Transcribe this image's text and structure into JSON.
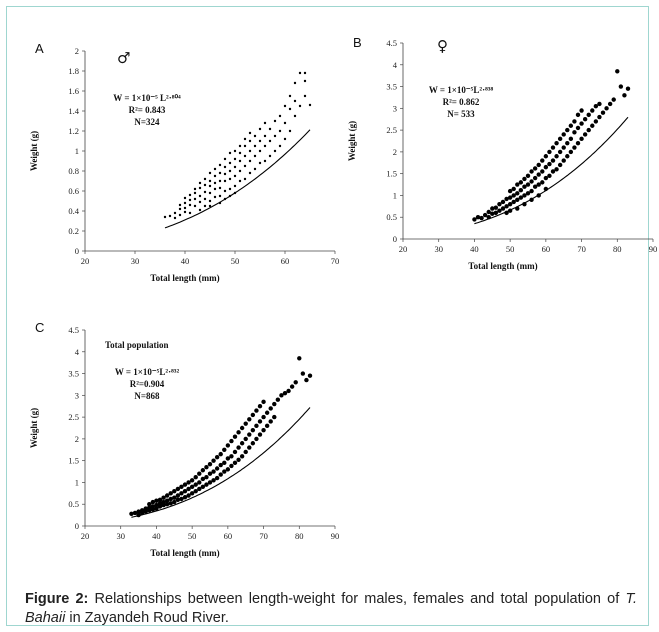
{
  "caption": {
    "label": "Figure 2:",
    "text_before": " Relationships between length-weight for males, females and total population of ",
    "species": "T. Bahaii",
    "text_after": " in Zayandeh Roud River."
  },
  "chart_data": [
    {
      "panel": "A",
      "type": "scatter",
      "symbol": "♂",
      "title": "",
      "xlabel": "Total length (mm)",
      "ylabel": "Weight (g)",
      "xlim": [
        20,
        70
      ],
      "ylim": [
        0,
        2
      ],
      "xticks": [
        "20",
        "30",
        "40",
        "50",
        "60",
        "70"
      ],
      "yticks": [
        "0",
        "0.2",
        "0.4",
        "0.6",
        "0.8",
        "1",
        "1.2",
        "1.4",
        "1.6",
        "1.8",
        "2"
      ],
      "equation": {
        "line1": "W = 1×10⁻⁵ L²·⁸⁰⁴",
        "line2": "R²= 0.843",
        "line3": "N=324"
      },
      "fit": {
        "a": 1e-05,
        "b": 2.804,
        "x_range": [
          36,
          65
        ]
      },
      "points": [
        [
          36,
          0.34
        ],
        [
          37,
          0.35
        ],
        [
          38,
          0.33
        ],
        [
          38,
          0.38
        ],
        [
          39,
          0.42
        ],
        [
          39,
          0.46
        ],
        [
          39,
          0.36
        ],
        [
          40,
          0.43
        ],
        [
          40,
          0.48
        ],
        [
          40,
          0.53
        ],
        [
          40,
          0.39
        ],
        [
          41,
          0.46
        ],
        [
          41,
          0.51
        ],
        [
          41,
          0.56
        ],
        [
          41,
          0.38
        ],
        [
          42,
          0.45
        ],
        [
          42,
          0.52
        ],
        [
          42,
          0.58
        ],
        [
          42,
          0.62
        ],
        [
          43,
          0.41
        ],
        [
          43,
          0.49
        ],
        [
          43,
          0.55
        ],
        [
          43,
          0.63
        ],
        [
          43,
          0.68
        ],
        [
          44,
          0.45
        ],
        [
          44,
          0.52
        ],
        [
          44,
          0.59
        ],
        [
          44,
          0.66
        ],
        [
          44,
          0.72
        ],
        [
          45,
          0.5
        ],
        [
          45,
          0.58
        ],
        [
          45,
          0.65
        ],
        [
          45,
          0.7
        ],
        [
          45,
          0.78
        ],
        [
          45,
          0.45
        ],
        [
          46,
          0.54
        ],
        [
          46,
          0.62
        ],
        [
          46,
          0.68
        ],
        [
          46,
          0.75
        ],
        [
          46,
          0.82
        ],
        [
          47,
          0.55
        ],
        [
          47,
          0.63
        ],
        [
          47,
          0.7
        ],
        [
          47,
          0.78
        ],
        [
          47,
          0.86
        ],
        [
          47,
          0.48
        ],
        [
          48,
          0.6
        ],
        [
          48,
          0.7
        ],
        [
          48,
          0.77
        ],
        [
          48,
          0.84
        ],
        [
          48,
          0.92
        ],
        [
          48,
          0.52
        ],
        [
          49,
          0.62
        ],
        [
          49,
          0.72
        ],
        [
          49,
          0.8
        ],
        [
          49,
          0.88
        ],
        [
          49,
          0.98
        ],
        [
          49,
          0.55
        ],
        [
          50,
          0.65
        ],
        [
          50,
          0.75
        ],
        [
          50,
          0.84
        ],
        [
          50,
          0.92
        ],
        [
          50,
          1.0
        ],
        [
          50,
          0.58
        ],
        [
          51,
          0.7
        ],
        [
          51,
          0.8
        ],
        [
          51,
          0.9
        ],
        [
          51,
          0.98
        ],
        [
          51,
          1.05
        ],
        [
          52,
          0.72
        ],
        [
          52,
          0.85
        ],
        [
          52,
          0.95
        ],
        [
          52,
          1.05
        ],
        [
          52,
          1.12
        ],
        [
          53,
          0.78
        ],
        [
          53,
          0.9
        ],
        [
          53,
          1.0
        ],
        [
          53,
          1.1
        ],
        [
          53,
          1.18
        ],
        [
          54,
          0.82
        ],
        [
          54,
          0.95
        ],
        [
          54,
          1.05
        ],
        [
          54,
          1.15
        ],
        [
          55,
          0.88
        ],
        [
          55,
          1.0
        ],
        [
          55,
          1.1
        ],
        [
          55,
          1.22
        ],
        [
          56,
          0.9
        ],
        [
          56,
          1.05
        ],
        [
          56,
          1.15
        ],
        [
          56,
          1.28
        ],
        [
          57,
          0.95
        ],
        [
          57,
          1.1
        ],
        [
          57,
          1.22
        ],
        [
          58,
          1.0
        ],
        [
          58,
          1.15
        ],
        [
          58,
          1.3
        ],
        [
          59,
          1.05
        ],
        [
          59,
          1.2
        ],
        [
          59,
          1.35
        ],
        [
          60,
          1.12
        ],
        [
          60,
          1.28
        ],
        [
          60,
          1.45
        ],
        [
          61,
          1.2
        ],
        [
          61,
          1.42
        ],
        [
          61,
          1.55
        ],
        [
          62,
          1.35
        ],
        [
          62,
          1.5
        ],
        [
          62,
          1.68
        ],
        [
          63,
          1.45
        ],
        [
          63,
          1.78
        ],
        [
          64,
          1.55
        ],
        [
          64,
          1.7
        ],
        [
          64,
          1.78
        ],
        [
          65,
          1.46
        ]
      ]
    },
    {
      "panel": "B",
      "type": "scatter",
      "symbol": "♀",
      "title": "",
      "xlabel": "Total length (mm)",
      "ylabel": "Weight (g)",
      "xlim": [
        20,
        90
      ],
      "ylim": [
        0,
        4.5
      ],
      "xticks": [
        "20",
        "30",
        "40",
        "50",
        "60",
        "70",
        "80",
        "90"
      ],
      "yticks": [
        "0",
        "0.5",
        "1",
        "1.5",
        "2",
        "2.5",
        "3",
        "3.5",
        "4",
        "4.5"
      ],
      "equation": {
        "line1": "W = 1×10⁻⁵L²·⁸³⁸",
        "line2": "R²= 0.862",
        "line3": "N= 533"
      },
      "fit": {
        "a": 1e-05,
        "b": 2.838,
        "x_range": [
          40,
          83
        ]
      },
      "points": [
        [
          40,
          0.45
        ],
        [
          41,
          0.5
        ],
        [
          42,
          0.48
        ],
        [
          43,
          0.55
        ],
        [
          44,
          0.5
        ],
        [
          44,
          0.62
        ],
        [
          45,
          0.58
        ],
        [
          45,
          0.7
        ],
        [
          46,
          0.6
        ],
        [
          46,
          0.72
        ],
        [
          47,
          0.65
        ],
        [
          47,
          0.8
        ],
        [
          48,
          0.7
        ],
        [
          48,
          0.85
        ],
        [
          49,
          0.75
        ],
        [
          49,
          0.92
        ],
        [
          49,
          0.6
        ],
        [
          50,
          0.8
        ],
        [
          50,
          0.95
        ],
        [
          50,
          1.1
        ],
        [
          50,
          0.65
        ],
        [
          51,
          0.85
        ],
        [
          51,
          1.0
        ],
        [
          51,
          1.15
        ],
        [
          52,
          0.9
        ],
        [
          52,
          1.05
        ],
        [
          52,
          1.25
        ],
        [
          52,
          0.7
        ],
        [
          53,
          0.95
        ],
        [
          53,
          1.12
        ],
        [
          53,
          1.3
        ],
        [
          54,
          1.0
        ],
        [
          54,
          1.2
        ],
        [
          54,
          1.38
        ],
        [
          54,
          0.8
        ],
        [
          55,
          1.05
        ],
        [
          55,
          1.25
        ],
        [
          55,
          1.45
        ],
        [
          56,
          1.1
        ],
        [
          56,
          1.32
        ],
        [
          56,
          1.55
        ],
        [
          56,
          0.9
        ],
        [
          57,
          1.2
        ],
        [
          57,
          1.4
        ],
        [
          57,
          1.62
        ],
        [
          58,
          1.25
        ],
        [
          58,
          1.48
        ],
        [
          58,
          1.7
        ],
        [
          58,
          1.0
        ],
        [
          59,
          1.3
        ],
        [
          59,
          1.55
        ],
        [
          59,
          1.8
        ],
        [
          60,
          1.4
        ],
        [
          60,
          1.65
        ],
        [
          60,
          1.9
        ],
        [
          60,
          1.15
        ],
        [
          61,
          1.45
        ],
        [
          61,
          1.72
        ],
        [
          61,
          2.0
        ],
        [
          62,
          1.55
        ],
        [
          62,
          1.8
        ],
        [
          62,
          2.1
        ],
        [
          63,
          1.6
        ],
        [
          63,
          1.9
        ],
        [
          63,
          2.2
        ],
        [
          64,
          1.7
        ],
        [
          64,
          2.0
        ],
        [
          64,
          2.3
        ],
        [
          65,
          1.8
        ],
        [
          65,
          2.1
        ],
        [
          65,
          2.4
        ],
        [
          66,
          1.9
        ],
        [
          66,
          2.2
        ],
        [
          66,
          2.5
        ],
        [
          67,
          2.0
        ],
        [
          67,
          2.3
        ],
        [
          67,
          2.6
        ],
        [
          68,
          2.1
        ],
        [
          68,
          2.45
        ],
        [
          68,
          2.7
        ],
        [
          69,
          2.2
        ],
        [
          69,
          2.55
        ],
        [
          69,
          2.85
        ],
        [
          70,
          2.3
        ],
        [
          70,
          2.65
        ],
        [
          70,
          2.95
        ],
        [
          71,
          2.4
        ],
        [
          71,
          2.75
        ],
        [
          72,
          2.5
        ],
        [
          72,
          2.85
        ],
        [
          73,
          2.6
        ],
        [
          73,
          2.95
        ],
        [
          74,
          2.7
        ],
        [
          74,
          3.05
        ],
        [
          75,
          2.8
        ],
        [
          75,
          3.1
        ],
        [
          76,
          2.9
        ],
        [
          77,
          3.0
        ],
        [
          78,
          3.1
        ],
        [
          79,
          3.2
        ],
        [
          80,
          3.85
        ],
        [
          81,
          3.5
        ],
        [
          82,
          3.3
        ],
        [
          83,
          3.45
        ]
      ]
    },
    {
      "panel": "C",
      "type": "scatter",
      "title": "Total population",
      "xlabel": "Total length (mm)",
      "ylabel": "Weight (g)",
      "xlim": [
        20,
        90
      ],
      "ylim": [
        0,
        4.5
      ],
      "xticks": [
        "20",
        "30",
        "40",
        "50",
        "60",
        "70",
        "80",
        "90"
      ],
      "yticks": [
        "0",
        "0.5",
        "1",
        "1.5",
        "2",
        "2.5",
        "3",
        "3.5",
        "4",
        "4.5"
      ],
      "equation": {
        "line1": "W = 1×10⁻⁵L²·⁸³²",
        "line2": "R²=0.904",
        "line3": "N=868"
      },
      "fit": {
        "a": 1e-05,
        "b": 2.832,
        "x_range": [
          33,
          83
        ]
      },
      "points": [
        [
          33,
          0.28
        ],
        [
          34,
          0.3
        ],
        [
          35,
          0.33
        ],
        [
          35,
          0.25
        ],
        [
          36,
          0.36
        ],
        [
          36,
          0.3
        ],
        [
          37,
          0.4
        ],
        [
          37,
          0.33
        ],
        [
          38,
          0.42
        ],
        [
          38,
          0.36
        ],
        [
          38,
          0.5
        ],
        [
          39,
          0.45
        ],
        [
          39,
          0.38
        ],
        [
          39,
          0.55
        ],
        [
          40,
          0.48
        ],
        [
          40,
          0.4
        ],
        [
          40,
          0.58
        ],
        [
          41,
          0.52
        ],
        [
          41,
          0.45
        ],
        [
          41,
          0.6
        ],
        [
          42,
          0.55
        ],
        [
          42,
          0.48
        ],
        [
          42,
          0.65
        ],
        [
          43,
          0.58
        ],
        [
          43,
          0.5
        ],
        [
          43,
          0.7
        ],
        [
          44,
          0.62
        ],
        [
          44,
          0.52
        ],
        [
          44,
          0.75
        ],
        [
          45,
          0.65
        ],
        [
          45,
          0.55
        ],
        [
          45,
          0.8
        ],
        [
          46,
          0.7
        ],
        [
          46,
          0.6
        ],
        [
          46,
          0.85
        ],
        [
          47,
          0.75
        ],
        [
          47,
          0.62
        ],
        [
          47,
          0.9
        ],
        [
          48,
          0.8
        ],
        [
          48,
          0.66
        ],
        [
          48,
          0.95
        ],
        [
          49,
          0.85
        ],
        [
          49,
          0.7
        ],
        [
          49,
          1.0
        ],
        [
          50,
          0.9
        ],
        [
          50,
          0.75
        ],
        [
          50,
          1.05
        ],
        [
          51,
          0.95
        ],
        [
          51,
          0.8
        ],
        [
          51,
          1.12
        ],
        [
          52,
          1.0
        ],
        [
          52,
          0.85
        ],
        [
          52,
          1.2
        ],
        [
          53,
          1.08
        ],
        [
          53,
          0.9
        ],
        [
          53,
          1.28
        ],
        [
          54,
          1.12
        ],
        [
          54,
          0.95
        ],
        [
          54,
          1.35
        ],
        [
          55,
          1.2
        ],
        [
          55,
          1.0
        ],
        [
          55,
          1.42
        ],
        [
          56,
          1.25
        ],
        [
          56,
          1.05
        ],
        [
          56,
          1.5
        ],
        [
          57,
          1.32
        ],
        [
          57,
          1.1
        ],
        [
          57,
          1.58
        ],
        [
          58,
          1.4
        ],
        [
          58,
          1.18
        ],
        [
          58,
          1.65
        ],
        [
          59,
          1.45
        ],
        [
          59,
          1.25
        ],
        [
          59,
          1.75
        ],
        [
          60,
          1.55
        ],
        [
          60,
          1.3
        ],
        [
          60,
          1.85
        ],
        [
          61,
          1.6
        ],
        [
          61,
          1.38
        ],
        [
          61,
          1.95
        ],
        [
          62,
          1.7
        ],
        [
          62,
          1.45
        ],
        [
          62,
          2.05
        ],
        [
          63,
          1.8
        ],
        [
          63,
          1.52
        ],
        [
          63,
          2.15
        ],
        [
          64,
          1.9
        ],
        [
          64,
          1.6
        ],
        [
          64,
          2.25
        ],
        [
          65,
          2.0
        ],
        [
          65,
          1.7
        ],
        [
          65,
          2.35
        ],
        [
          66,
          2.1
        ],
        [
          66,
          1.8
        ],
        [
          66,
          2.45
        ],
        [
          67,
          2.2
        ],
        [
          67,
          1.9
        ],
        [
          67,
          2.55
        ],
        [
          68,
          2.3
        ],
        [
          68,
          2.0
        ],
        [
          68,
          2.65
        ],
        [
          69,
          2.4
        ],
        [
          69,
          2.1
        ],
        [
          69,
          2.75
        ],
        [
          70,
          2.5
        ],
        [
          70,
          2.2
        ],
        [
          70,
          2.85
        ],
        [
          71,
          2.6
        ],
        [
          71,
          2.3
        ],
        [
          72,
          2.7
        ],
        [
          72,
          2.4
        ],
        [
          73,
          2.8
        ],
        [
          73,
          2.5
        ],
        [
          74,
          2.9
        ],
        [
          75,
          3.0
        ],
        [
          76,
          3.05
        ],
        [
          77,
          3.1
        ],
        [
          78,
          3.2
        ],
        [
          79,
          3.3
        ],
        [
          80,
          3.85
        ],
        [
          81,
          3.5
        ],
        [
          82,
          3.35
        ],
        [
          83,
          3.45
        ]
      ]
    }
  ]
}
